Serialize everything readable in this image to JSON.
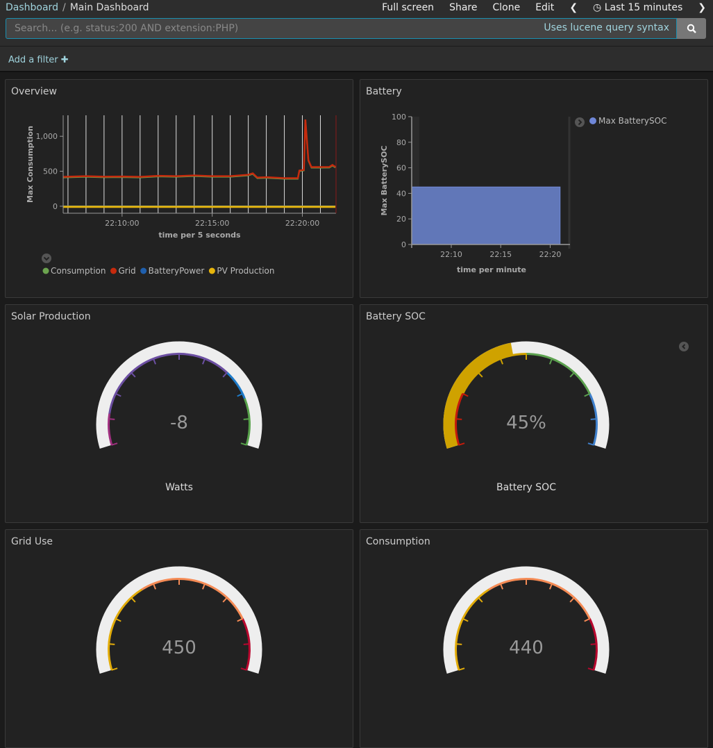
{
  "breadcrumb": {
    "root": "Dashboard",
    "current": "Main Dashboard"
  },
  "menu": {
    "full_screen": "Full screen",
    "share": "Share",
    "clone": "Clone",
    "edit": "Edit",
    "time_range": "Last 15 minutes"
  },
  "search": {
    "placeholder": "Search... (e.g. status:200 AND extension:PHP)",
    "value": "",
    "hint": "Uses lucene query syntax",
    "icon": "search-icon"
  },
  "filter": {
    "add_label": "Add a filter"
  },
  "colors": {
    "accent": "#9fd3dd",
    "panel_bg": "#222222",
    "gauge_bg": "#eeeeee"
  },
  "panels": {
    "overview": {
      "title": "Overview"
    },
    "battery": {
      "title": "Battery"
    },
    "solar": {
      "title": "Solar Production"
    },
    "battery_soc": {
      "title": "Battery SOC"
    },
    "grid": {
      "title": "Grid Use"
    },
    "consumption": {
      "title": "Consumption"
    }
  },
  "chart_data": [
    {
      "type": "line",
      "ylabel": "Max Consumption",
      "xlabel": "time per 5 seconds",
      "ylim": [
        -100,
        1300
      ],
      "xlim": [
        "22:06:44",
        "22:21:52"
      ],
      "yticks": [
        "0",
        "500",
        "1,000"
      ],
      "xticks": [
        "22:10:00",
        "22:15:00",
        "22:20:00"
      ],
      "legend_position": "bottom",
      "series": [
        {
          "name": "Consumption",
          "color": "#6ca44f",
          "points": [
            [
              "22:06:45",
              410
            ],
            [
              "22:08:00",
              420
            ],
            [
              "22:09:00",
              412
            ],
            [
              "22:10:00",
              415
            ],
            [
              "22:11:00",
              410
            ],
            [
              "22:12:00",
              425
            ],
            [
              "22:13:00",
              420
            ],
            [
              "22:14:00",
              430
            ],
            [
              "22:15:00",
              420
            ],
            [
              "22:16:00",
              420
            ],
            [
              "22:17:00",
              440
            ],
            [
              "22:17:15",
              460
            ],
            [
              "22:17:30",
              400
            ],
            [
              "22:18:00",
              405
            ],
            [
              "22:19:00",
              392
            ],
            [
              "22:19:45",
              392
            ],
            [
              "22:19:50",
              500
            ],
            [
              "22:20:05",
              510
            ],
            [
              "22:20:10",
              1230
            ],
            [
              "22:20:20",
              650
            ],
            [
              "22:20:30",
              550
            ],
            [
              "22:21:00",
              550
            ],
            [
              "22:21:30",
              552
            ],
            [
              "22:21:40",
              580
            ],
            [
              "22:21:50",
              552
            ]
          ]
        },
        {
          "name": "Grid",
          "color": "#c62a0d",
          "points": [
            [
              "22:06:45",
              420
            ],
            [
              "22:08:00",
              430
            ],
            [
              "22:09:00",
              422
            ],
            [
              "22:10:00",
              425
            ],
            [
              "22:11:00",
              420
            ],
            [
              "22:12:00",
              435
            ],
            [
              "22:13:00",
              430
            ],
            [
              "22:14:00",
              440
            ],
            [
              "22:15:00",
              430
            ],
            [
              "22:16:00",
              430
            ],
            [
              "22:17:00",
              450
            ],
            [
              "22:17:15",
              470
            ],
            [
              "22:17:30",
              410
            ],
            [
              "22:18:00",
              415
            ],
            [
              "22:19:00",
              402
            ],
            [
              "22:19:45",
              402
            ],
            [
              "22:19:50",
              510
            ],
            [
              "22:20:05",
              520
            ],
            [
              "22:20:10",
              1240
            ],
            [
              "22:20:20",
              660
            ],
            [
              "22:20:30",
              560
            ],
            [
              "22:21:00",
              560
            ],
            [
              "22:21:30",
              562
            ],
            [
              "22:21:40",
              590
            ],
            [
              "22:21:50",
              562
            ]
          ]
        },
        {
          "name": "BatteryPower",
          "color": "#1f5fad",
          "points": [
            [
              "22:06:45",
              0
            ],
            [
              "22:21:50",
              0
            ]
          ]
        },
        {
          "name": "PV Production",
          "color": "#e6b40c",
          "points": [
            [
              "22:06:45",
              -8
            ],
            [
              "22:21:50",
              -8
            ]
          ]
        }
      ]
    },
    {
      "type": "area",
      "ylabel": "Max BatterySOC",
      "xlabel": "time per minute",
      "ylim": [
        0,
        100
      ],
      "xlim": [
        "22:06",
        "22:22"
      ],
      "yticks": [
        "0",
        "20",
        "40",
        "60",
        "80",
        "100"
      ],
      "xticks": [
        "22:10",
        "22:15",
        "22:20"
      ],
      "legend_position": "right",
      "series": [
        {
          "name": "Max BatterySOC",
          "color": "#6f87d8",
          "points": [
            [
              "22:06",
              45
            ],
            [
              "22:21",
              45
            ]
          ]
        }
      ]
    }
  ],
  "gauges": [
    {
      "id": "solar",
      "value": "-8",
      "label": "Watts",
      "fill_fraction": 0,
      "fill_color": "#eeeeee",
      "bands": [
        {
          "to": 0.12,
          "color": "#a0307f"
        },
        {
          "to": 0.7,
          "color": "#6c4fa2"
        },
        {
          "to": 0.82,
          "color": "#1e7bc9"
        },
        {
          "to": 1,
          "color": "#57a14a"
        }
      ]
    },
    {
      "id": "battery_soc",
      "value": "45%",
      "label": "Battery SOC",
      "fill_fraction": 0.45,
      "fill_color": "#cfa200",
      "bands": [
        {
          "to": 0.2,
          "color": "#c41b0b"
        },
        {
          "to": 0.5,
          "color": "#cfa200"
        },
        {
          "to": 0.8,
          "color": "#5ca14f"
        },
        {
          "to": 1,
          "color": "#3f80cc"
        }
      ]
    },
    {
      "id": "grid",
      "value": "450",
      "label": "",
      "fill_fraction": 0,
      "fill_color": "#eeeeee",
      "bands": [
        {
          "to": 0.35,
          "color": "#e2ac0a"
        },
        {
          "to": 0.8,
          "color": "#f58b55"
        },
        {
          "to": 1,
          "color": "#b8072e"
        }
      ]
    },
    {
      "id": "consumption",
      "value": "440",
      "label": "",
      "fill_fraction": 0,
      "fill_color": "#eeeeee",
      "bands": [
        {
          "to": 0.35,
          "color": "#e2ac0a"
        },
        {
          "to": 0.8,
          "color": "#f58b55"
        },
        {
          "to": 1,
          "color": "#b8072e"
        }
      ]
    }
  ]
}
